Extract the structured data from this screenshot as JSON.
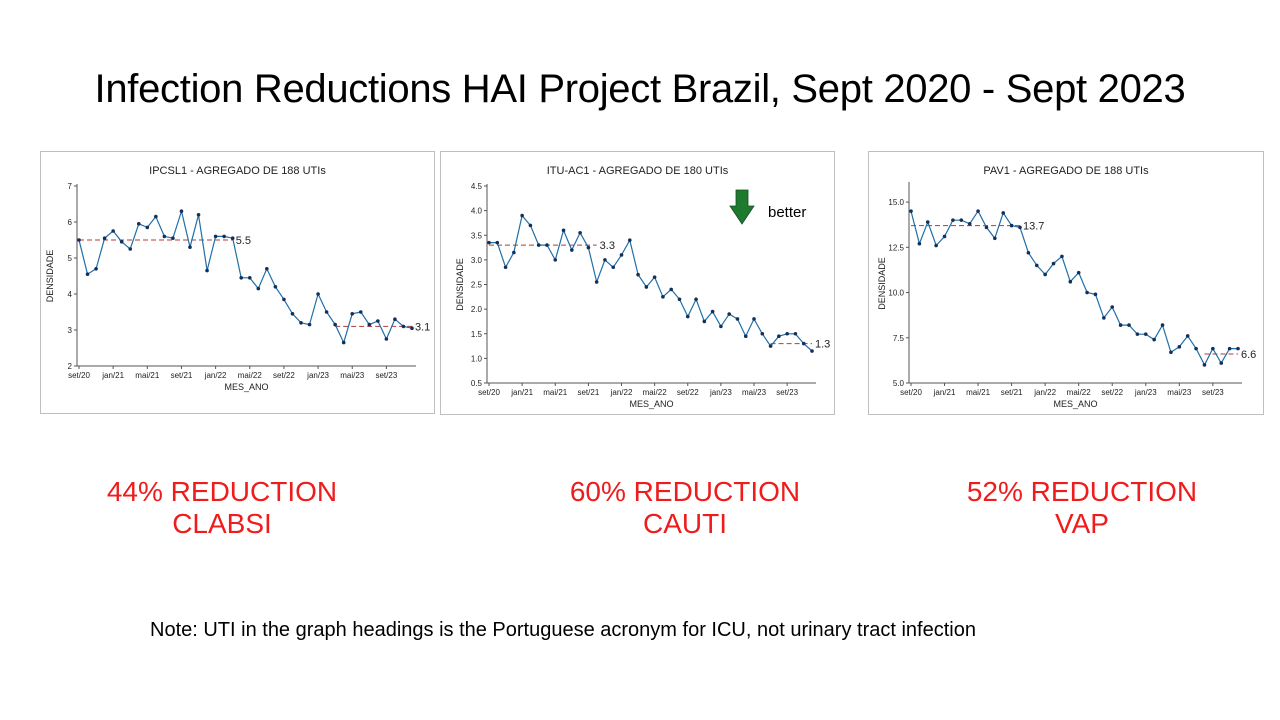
{
  "title": "Infection Reductions HAI Project Brazil, Sept 2020 - Sept 2023",
  "note": "Note:  UTI in the graph headings is the Portuguese acronym for ICU, not urinary tract infection",
  "better_label": "better",
  "colors": {
    "series": "#1f6fa8",
    "points": "#14305a",
    "median": "#b23a3a",
    "reduction_text": "#ee1c1c",
    "arrow": "#1e7a2e"
  },
  "reductions": [
    {
      "line1": "44% REDUCTION",
      "line2": "CLABSI"
    },
    {
      "line1": "60% REDUCTION",
      "line2": "CAUTI"
    },
    {
      "line1": "52% REDUCTION",
      "line2": "VAP"
    }
  ],
  "chart_data": [
    {
      "type": "line",
      "title": "IPCSL1 - AGREGADO DE 188 UTIs",
      "xlabel": "MES_ANO",
      "ylabel": "DENSIDADE",
      "ylim": [
        2,
        7
      ],
      "yticks": [
        "2",
        "3",
        "4",
        "5",
        "6",
        "7"
      ],
      "ytick_values": [
        2,
        3,
        4,
        5,
        6,
        7
      ],
      "xticks": [
        "set/20",
        "jan/21",
        "mai/21",
        "set/21",
        "jan/22",
        "mai/22",
        "set/22",
        "jan/23",
        "mai/23",
        "set/23"
      ],
      "xtick_index": [
        0,
        4,
        8,
        12,
        16,
        20,
        24,
        28,
        32,
        36
      ],
      "n_points": 40,
      "values": [
        5.5,
        4.55,
        4.7,
        5.55,
        5.75,
        5.45,
        5.25,
        5.95,
        5.85,
        6.15,
        5.6,
        5.55,
        6.3,
        5.3,
        6.2,
        4.65,
        5.6,
        5.6,
        5.55,
        4.45,
        4.45,
        4.15,
        4.7,
        4.2,
        3.85,
        3.45,
        3.2,
        3.15,
        4.0,
        3.5,
        3.15,
        2.65,
        3.45,
        3.5,
        3.15,
        3.25,
        2.75,
        3.3,
        3.1,
        3.05
      ],
      "medians": [
        {
          "start": 0,
          "end": 18,
          "value": 5.5,
          "label": "5.5"
        },
        {
          "start": 30,
          "end": 39,
          "value": 3.1,
          "label": "3.1"
        }
      ]
    },
    {
      "type": "line",
      "title": "ITU-AC1 - AGREGADO DE 180 UTIs",
      "xlabel": "MES_ANO",
      "ylabel": "DENSIDADE",
      "ylim": [
        0.5,
        4.5
      ],
      "yticks": [
        "0.5",
        "1.0",
        "1.5",
        "2.0",
        "2.5",
        "3.0",
        "3.5",
        "4.0",
        "4.5"
      ],
      "ytick_values": [
        0.5,
        1.0,
        1.5,
        2.0,
        2.5,
        3.0,
        3.5,
        4.0,
        4.5
      ],
      "xticks": [
        "set/20",
        "jan/21",
        "mai/21",
        "set/21",
        "jan/22",
        "mai/22",
        "set/22",
        "jan/23",
        "mai/23",
        "set/23"
      ],
      "xtick_index": [
        0,
        4,
        8,
        12,
        16,
        20,
        24,
        28,
        32,
        36
      ],
      "n_points": 40,
      "values": [
        3.35,
        3.35,
        2.85,
        3.15,
        3.9,
        3.7,
        3.3,
        3.3,
        3.0,
        3.6,
        3.2,
        3.55,
        3.25,
        2.55,
        3.0,
        2.85,
        3.1,
        3.4,
        2.7,
        2.45,
        2.65,
        2.25,
        2.4,
        2.2,
        1.85,
        2.2,
        1.75,
        1.95,
        1.65,
        1.9,
        1.8,
        1.45,
        1.8,
        1.5,
        1.25,
        1.45,
        1.5,
        1.5,
        1.3,
        1.15
      ],
      "medians": [
        {
          "start": 0,
          "end": 13,
          "value": 3.3,
          "label": "3.3"
        },
        {
          "start": 34,
          "end": 39,
          "value": 1.3,
          "label": "1.3"
        }
      ]
    },
    {
      "type": "line",
      "title": "PAV1 - AGREGADO DE 188 UTIs",
      "xlabel": "MES_ANO",
      "ylabel": "DENSIDADE",
      "ylim": [
        5.0,
        16.0
      ],
      "yticks": [
        "5.0",
        "7.5",
        "10.0",
        "12.5",
        "15.0"
      ],
      "ytick_values": [
        5.0,
        7.5,
        10.0,
        12.5,
        15.0
      ],
      "xticks": [
        "set/20",
        "jan/21",
        "mai/21",
        "set/21",
        "jan/22",
        "mai/22",
        "set/22",
        "jan/23",
        "mai/23",
        "set/23"
      ],
      "xtick_index": [
        0,
        4,
        8,
        12,
        16,
        20,
        24,
        28,
        32,
        36
      ],
      "n_points": 40,
      "values": [
        14.5,
        12.7,
        13.9,
        12.6,
        13.1,
        14.0,
        14.0,
        13.8,
        14.5,
        13.6,
        13.0,
        14.4,
        13.7,
        13.6,
        12.2,
        11.5,
        11.0,
        11.6,
        12.0,
        10.6,
        11.1,
        10.0,
        9.9,
        8.6,
        9.2,
        8.2,
        8.2,
        7.7,
        7.7,
        7.4,
        8.2,
        6.7,
        7.0,
        7.6,
        6.9,
        6.0,
        6.9,
        6.1,
        6.9,
        6.9
      ],
      "medians": [
        {
          "start": 0,
          "end": 13,
          "value": 13.7,
          "label": "13.7"
        },
        {
          "start": 35,
          "end": 39,
          "value": 6.6,
          "label": "6.6"
        }
      ]
    }
  ]
}
